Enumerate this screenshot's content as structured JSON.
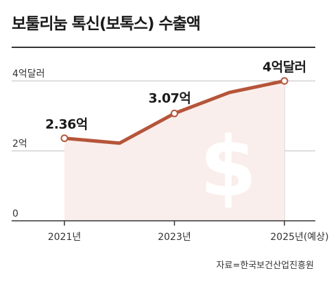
{
  "title": "보툴리눔 톡신(보톡스) 수출액",
  "source": "자료=한국보건산업진흥원",
  "colors": {
    "line": "#b5553a",
    "area": "#f9eeeb",
    "marker_fill": "#ffffff",
    "dollar": "#ffffff",
    "grid": "#bdbdbd",
    "axis": "#333333"
  },
  "chart_data": {
    "type": "line",
    "title": "보툴리눔 톡신(보톡스) 수출액",
    "xlabel": "",
    "ylabel": "",
    "ylim": [
      0,
      4
    ],
    "y_ticks": [
      {
        "value": 0,
        "label": "0"
      },
      {
        "value": 2,
        "label": "2억"
      },
      {
        "value": 4,
        "label": "4억달러"
      }
    ],
    "x_ticks": [
      {
        "value": 2021,
        "label": "2021년"
      },
      {
        "value": 2023,
        "label": "2023년"
      },
      {
        "value": 2025,
        "label": "2025년(예상)"
      }
    ],
    "xlim": [
      2021,
      2025
    ],
    "grid": true,
    "legend": "none",
    "series": [
      {
        "points": [
          {
            "x": 2021,
            "y": 2.36
          },
          {
            "x": 2022,
            "y": 2.22
          },
          {
            "x": 2023,
            "y": 3.07
          },
          {
            "x": 2024,
            "y": 3.67
          },
          {
            "x": 2025,
            "y": 4.0
          }
        ]
      }
    ],
    "annotations": [
      {
        "x": 2021,
        "y": 2.36,
        "text": "2.36억"
      },
      {
        "x": 2023,
        "y": 3.07,
        "text": "3.07억"
      },
      {
        "x": 2025,
        "y": 4.0,
        "text": "4억달러"
      }
    ]
  }
}
